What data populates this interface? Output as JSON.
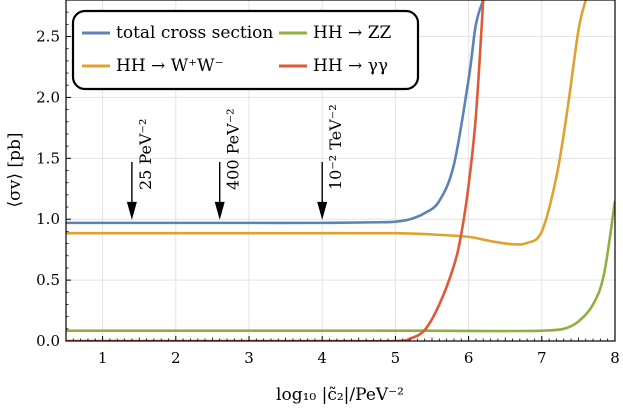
{
  "chart_data": {
    "type": "line",
    "xlabel": "log₁₀ |c̃₂|/PeV⁻²",
    "ylabel": "⟨σv⟩ [pb]",
    "xlim": [
      0.5,
      8
    ],
    "ylim": [
      0,
      2.8
    ],
    "xticks": [
      "1",
      "2",
      "3",
      "4",
      "5",
      "6",
      "7",
      "8"
    ],
    "yticks": [
      "0.0",
      "0.5",
      "1.0",
      "1.5",
      "2.0",
      "2.5"
    ],
    "grid": true,
    "legend_position": "top-left",
    "series": [
      {
        "name": "total cross section",
        "color": "#5d82b5",
        "x": [
          0.5,
          1,
          2,
          3,
          4,
          4.8,
          5.0,
          5.2,
          5.4,
          5.6,
          5.8,
          6.0,
          6.1,
          6.2
        ],
        "y": [
          0.97,
          0.97,
          0.97,
          0.97,
          0.97,
          0.975,
          0.98,
          1.0,
          1.05,
          1.15,
          1.45,
          2.15,
          2.6,
          2.8
        ]
      },
      {
        "name": "HH → W⁺W⁻",
        "color": "#e0a22f",
        "x": [
          0.5,
          1,
          2,
          3,
          4,
          5,
          5.5,
          6.0,
          6.3,
          6.6,
          6.8,
          7.0,
          7.2,
          7.35,
          7.5,
          7.6
        ],
        "y": [
          0.885,
          0.885,
          0.885,
          0.885,
          0.885,
          0.885,
          0.875,
          0.855,
          0.82,
          0.795,
          0.805,
          0.9,
          1.35,
          1.9,
          2.55,
          2.8
        ]
      },
      {
        "name": "HH → ZZ",
        "color": "#8fb03f",
        "x": [
          0.5,
          1,
          2,
          3,
          4,
          5,
          6,
          6.5,
          7.0,
          7.3,
          7.5,
          7.7,
          7.85,
          8.0
        ],
        "y": [
          0.085,
          0.085,
          0.085,
          0.085,
          0.085,
          0.085,
          0.083,
          0.082,
          0.085,
          0.1,
          0.16,
          0.3,
          0.55,
          1.15
        ]
      },
      {
        "name": "HH → γγ",
        "color": "#df5a35",
        "x": [
          0.5,
          1,
          2,
          3,
          4,
          5.0,
          5.2,
          5.4,
          5.6,
          5.8,
          5.9,
          6.0,
          6.1,
          6.2
        ],
        "y": [
          0,
          0,
          0,
          0,
          0,
          0.0,
          0.02,
          0.09,
          0.3,
          0.62,
          0.88,
          1.28,
          1.85,
          2.8
        ]
      }
    ],
    "annotations": [
      {
        "label": "25 PeV⁻²",
        "x": 1.4,
        "y_tip": 0.97
      },
      {
        "label": "400 PeV⁻²",
        "x": 2.6,
        "y_tip": 0.97
      },
      {
        "label": "10⁻² TeV⁻²",
        "x": 4.0,
        "y_tip": 0.97
      }
    ]
  }
}
